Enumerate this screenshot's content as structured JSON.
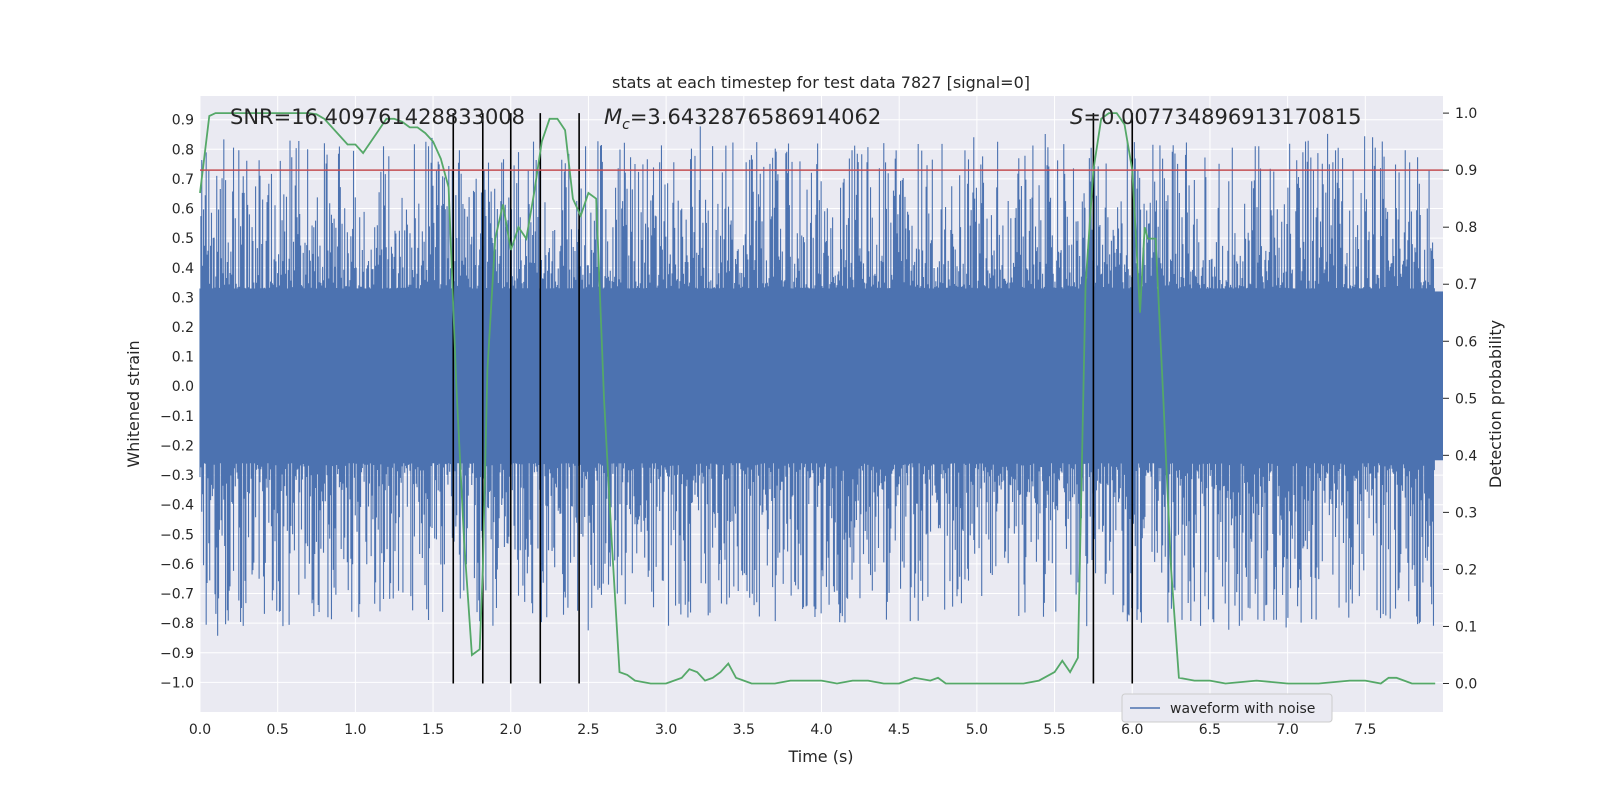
{
  "chart_data": {
    "type": "line",
    "title": "stats at each timestep for test data 7827 [signal=0]",
    "xlabel": "Time (s)",
    "ylabel_left": "Whitened strain",
    "ylabel_right": "Detection probability",
    "xlim": [
      0.0,
      8.0
    ],
    "ylim_left": [
      -1.1,
      0.98
    ],
    "ylim_right": [
      -0.05,
      1.03
    ],
    "x_ticks": [
      "0.0",
      "0.5",
      "1.0",
      "1.5",
      "2.0",
      "2.5",
      "3.0",
      "3.5",
      "4.0",
      "4.5",
      "5.0",
      "5.5",
      "6.0",
      "6.5",
      "7.0",
      "7.5"
    ],
    "y_ticks_left": [
      "0.9",
      "0.8",
      "0.7",
      "0.6",
      "0.5",
      "0.4",
      "0.3",
      "0.2",
      "0.1",
      "0.0",
      "−0.1",
      "−0.2",
      "−0.3",
      "−0.4",
      "−0.5",
      "−0.6",
      "−0.7",
      "−0.8",
      "−0.9",
      "−1.0"
    ],
    "y_ticks_right": [
      "1.0",
      "0.9",
      "0.8",
      "0.7",
      "0.6",
      "0.5",
      "0.4",
      "0.3",
      "0.2",
      "0.1",
      "0.0"
    ],
    "grid": true,
    "legend": {
      "position": "lower-right",
      "entries": [
        "waveform with noise"
      ]
    },
    "annotations": {
      "snr": "SNR=16.409761428833008",
      "mc_symbol": "M",
      "mc_sub": "c",
      "mc_value": "=3.6432876586914062",
      "s_symbol": "S",
      "s_value": "=0.007734896913170815"
    },
    "threshold": 0.9,
    "vertical_lines_x": [
      1.63,
      1.82,
      2.0,
      2.19,
      2.44,
      5.75,
      6.0
    ],
    "series": [
      {
        "name": "waveform with noise",
        "color": "#4c72b0",
        "envelope_core": [
          -0.25,
          0.32
        ],
        "spike_range_pos": [
          0.4,
          0.89
        ],
        "spike_range_neg": [
          -0.4,
          -1.0
        ]
      },
      {
        "kind": "detection probability",
        "color": "#55a868",
        "x": [
          0.0,
          0.06,
          0.1,
          0.2,
          0.3,
          0.4,
          0.5,
          0.6,
          0.7,
          0.75,
          0.8,
          0.85,
          0.9,
          0.95,
          1.0,
          1.05,
          1.1,
          1.15,
          1.2,
          1.25,
          1.3,
          1.35,
          1.4,
          1.45,
          1.5,
          1.55,
          1.6,
          1.65,
          1.7,
          1.75,
          1.8,
          1.82,
          1.85,
          1.9,
          1.95,
          2.0,
          2.05,
          2.1,
          2.15,
          2.2,
          2.25,
          2.3,
          2.35,
          2.4,
          2.45,
          2.5,
          2.55,
          2.6,
          2.65,
          2.7,
          2.75,
          2.8,
          2.9,
          3.0,
          3.1,
          3.15,
          3.2,
          3.25,
          3.3,
          3.35,
          3.4,
          3.45,
          3.5,
          3.55,
          3.6,
          3.7,
          3.8,
          3.9,
          4.0,
          4.1,
          4.2,
          4.3,
          4.4,
          4.5,
          4.6,
          4.7,
          4.75,
          4.8,
          4.9,
          5.0,
          5.1,
          5.2,
          5.3,
          5.4,
          5.5,
          5.55,
          5.6,
          5.65,
          5.7,
          5.75,
          5.8,
          5.85,
          5.9,
          5.95,
          6.0,
          6.05,
          6.08,
          6.1,
          6.15,
          6.2,
          6.25,
          6.3,
          6.4,
          6.5,
          6.6,
          6.8,
          7.0,
          7.2,
          7.4,
          7.5,
          7.6,
          7.65,
          7.7,
          7.8,
          7.95
        ],
        "y": [
          0.86,
          0.995,
          1.0,
          1.0,
          1.0,
          1.0,
          1.0,
          1.0,
          1.0,
          0.998,
          0.99,
          0.975,
          0.96,
          0.945,
          0.945,
          0.93,
          0.95,
          0.97,
          0.99,
          0.99,
          0.985,
          0.975,
          0.975,
          0.965,
          0.95,
          0.92,
          0.87,
          0.52,
          0.25,
          0.05,
          0.06,
          0.2,
          0.55,
          0.78,
          0.84,
          0.76,
          0.8,
          0.78,
          0.86,
          0.95,
          0.99,
          0.99,
          0.97,
          0.85,
          0.82,
          0.86,
          0.85,
          0.5,
          0.25,
          0.02,
          0.015,
          0.005,
          0.0,
          0.0,
          0.01,
          0.025,
          0.02,
          0.005,
          0.01,
          0.02,
          0.035,
          0.01,
          0.005,
          0.0,
          0.0,
          0.0,
          0.005,
          0.005,
          0.005,
          0.0,
          0.005,
          0.005,
          0.0,
          0.0,
          0.01,
          0.005,
          0.01,
          0.0,
          0.0,
          0.0,
          0.0,
          0.0,
          0.0,
          0.005,
          0.02,
          0.04,
          0.02,
          0.045,
          0.7,
          0.9,
          0.99,
          1.0,
          1.0,
          0.98,
          0.9,
          0.65,
          0.8,
          0.78,
          0.78,
          0.5,
          0.2,
          0.01,
          0.005,
          0.005,
          0.0,
          0.005,
          0.0,
          0.0,
          0.005,
          0.005,
          0.0,
          0.01,
          0.01,
          0.0,
          0.0
        ]
      }
    ]
  }
}
